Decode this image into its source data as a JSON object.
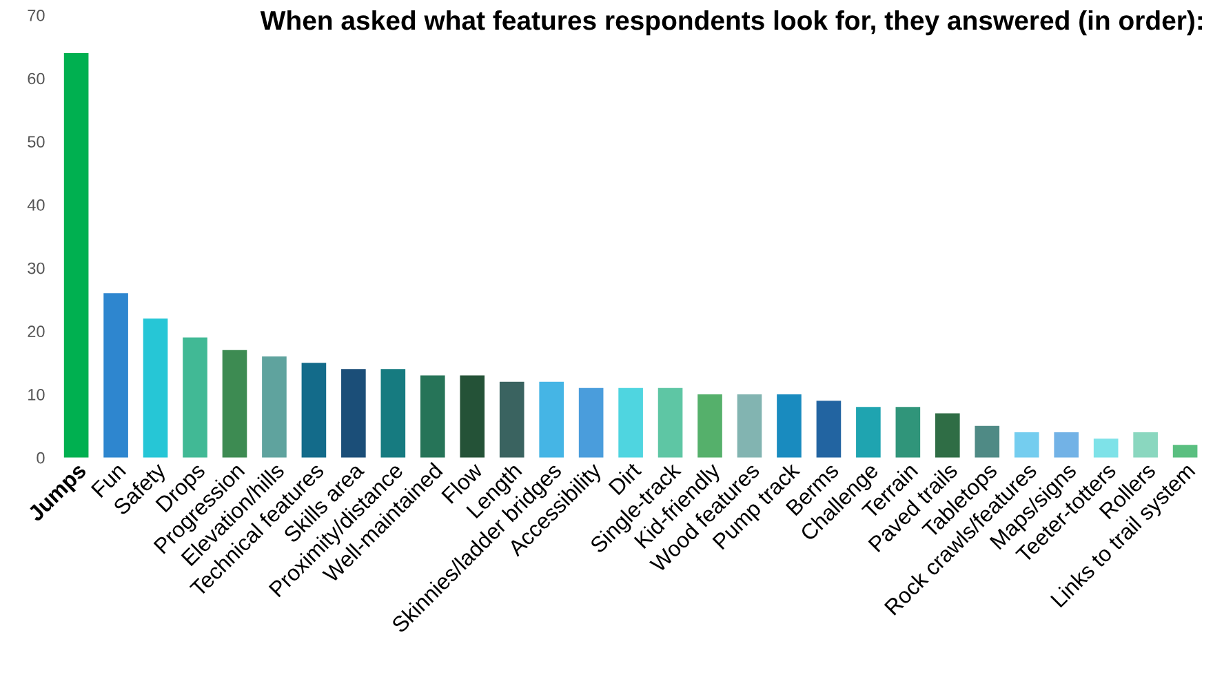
{
  "chart_data": {
    "type": "bar",
    "title": "When asked what features respondents look for, they answered (in order):",
    "categories": [
      "Jumps",
      "Fun",
      "Safety",
      "Drops",
      "Progression",
      "Elevation/hills",
      "Technical features",
      "Skills area",
      "Proximity/distance",
      "Well-maintained",
      "Flow",
      "Length",
      "Skinnies/ladder bridges",
      "Accessibility",
      "Dirt",
      "Single-track",
      "Kid-friendly",
      "Wood features",
      "Pump track",
      "Berms",
      "Challenge",
      "Terrain",
      "Paved trails",
      "Tabletops",
      "Rock crawls/features",
      "Maps/signs",
      "Teeter-totters",
      "Rollers",
      "Links to trail system"
    ],
    "values": [
      64,
      26,
      22,
      19,
      17,
      16,
      15,
      14,
      14,
      13,
      13,
      12,
      12,
      11,
      11,
      11,
      10,
      10,
      10,
      9,
      8,
      8,
      7,
      5,
      4,
      4,
      3,
      4,
      2
    ],
    "colors": [
      "#00b050",
      "#2e86cf",
      "#26c6d6",
      "#41b995",
      "#3d8b52",
      "#5fa39e",
      "#136b8a",
      "#1b4e78",
      "#167b80",
      "#267458",
      "#245237",
      "#3a6360",
      "#45b5e5",
      "#4a9ddc",
      "#4fd5e0",
      "#5ec6a4",
      "#55b06b",
      "#82b4b1",
      "#198bbf",
      "#2264a1",
      "#1fa4b0",
      "#30957a",
      "#2f6d45",
      "#4f8a85",
      "#74cdef",
      "#72b2e6",
      "#7ee2e8",
      "#8ad7bf",
      "#5abf80"
    ],
    "ylim": [
      0,
      70
    ],
    "yticks": [
      0,
      10,
      20,
      30,
      40,
      50,
      60,
      70
    ],
    "grid": false
  }
}
